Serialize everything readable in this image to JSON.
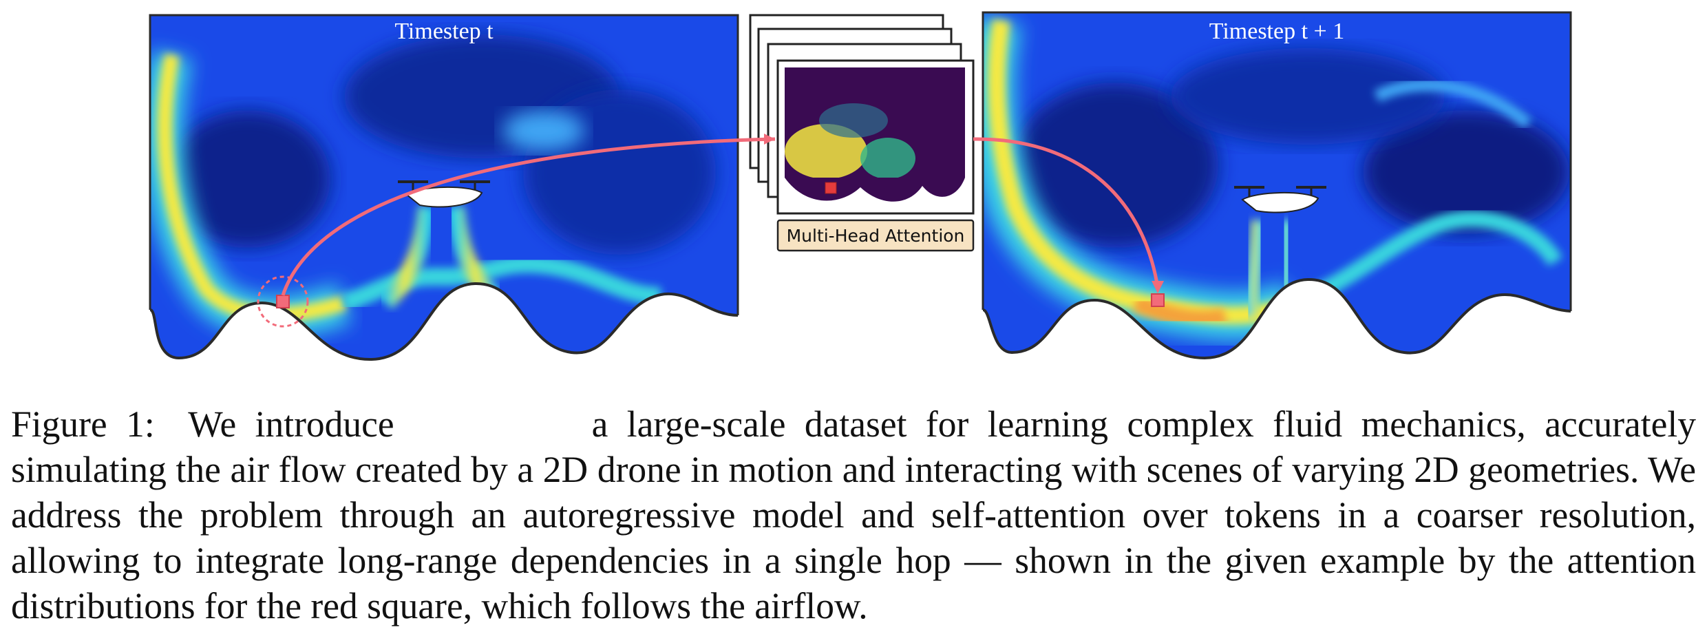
{
  "figure": {
    "left_panel_title": "Timestep t",
    "right_panel_title": "Timestep t + 1",
    "attention_label": "Multi-Head Attention"
  },
  "caption": {
    "label": "Figure 1:",
    "intro": "We introduce",
    "text": "a large-scale dataset for learning complex fluid mechanics, accurately simulating the air flow created by a 2D drone in motion and interacting with scenes of varying 2D geometries. We address the problem through an autoregressive model and self-attention over tokens in a coarser resolution, allowing to integrate long-range dependencies in a single hop — shown in the given example by the attention distributions for the red square, which follows the airflow."
  },
  "colors": {
    "field_dark": "#0a1f8f",
    "field_mid": "#1a4cf0",
    "jet": "#ffe94a",
    "arrow": "#f26b7a",
    "token_dark": "#3a0b52",
    "attn_box": "#f7e3c2"
  }
}
